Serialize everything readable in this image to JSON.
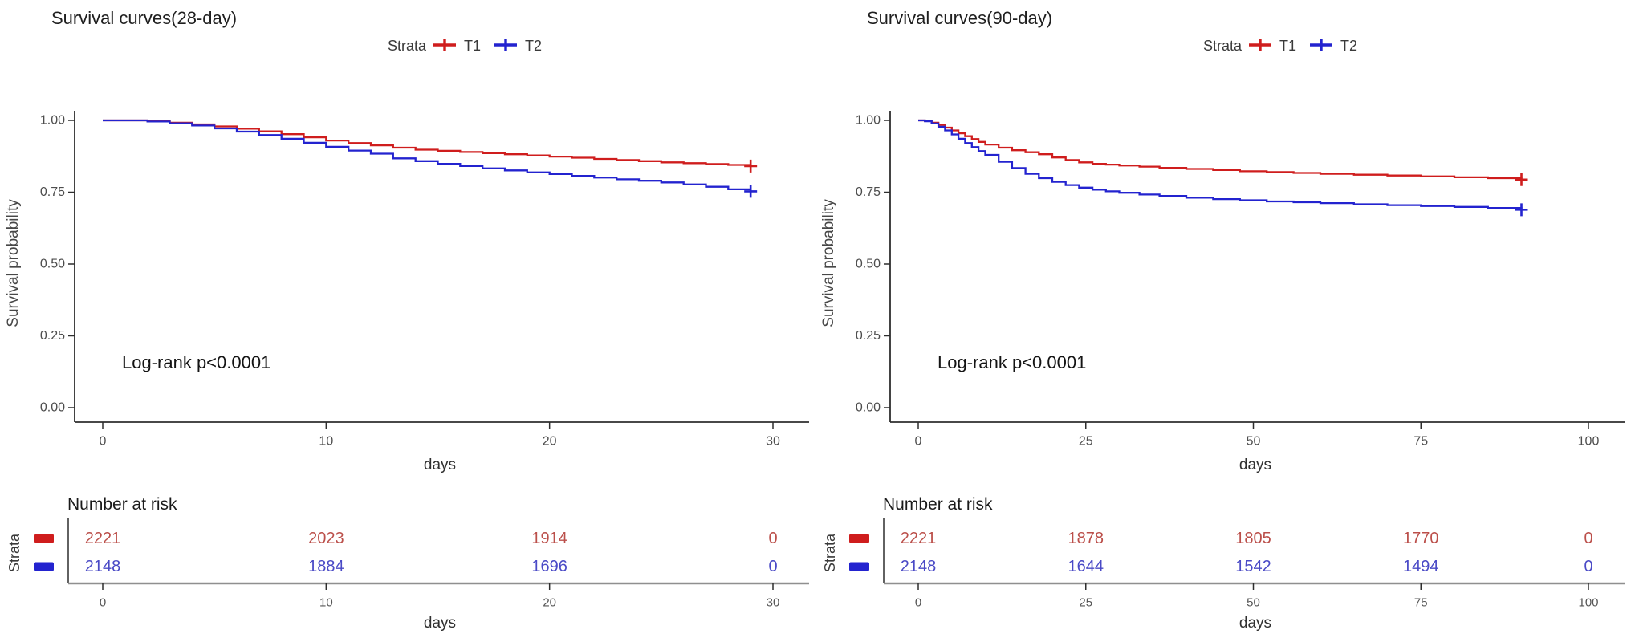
{
  "colors": {
    "t1": "#cf1d1d",
    "t2": "#2323cf",
    "t1_text": "#bb4f4a",
    "t2_text": "#4a4ac6",
    "axis": "#2e2e2e",
    "tick_label": "#4d4d4d",
    "risk_axis_line": "#8f8f8f"
  },
  "chart_data": [
    {
      "type": "line",
      "title": "Survival curves(28-day)",
      "legend_title": "Strata",
      "legend_position": "top",
      "xlabel": "days",
      "ylabel": "Survival probability",
      "annotation": "Log-rank p<0.0001",
      "grid": false,
      "xlim": [
        0,
        30
      ],
      "ylim": [
        0,
        1
      ],
      "xticks": [
        0,
        10,
        20,
        30
      ],
      "yticks": [
        1.0,
        0.75,
        0.5,
        0.25,
        0.0
      ],
      "ytick_labels": [
        "1.00",
        "0.75",
        "0.50",
        "0.25",
        "0.00"
      ],
      "series": [
        {
          "name": "T1",
          "color_key": "t1",
          "end_marker": "plus",
          "points": [
            [
              0,
              1
            ],
            [
              1,
              1
            ],
            [
              2,
              0.997
            ],
            [
              3,
              0.992
            ],
            [
              4,
              0.986
            ],
            [
              5,
              0.979
            ],
            [
              6,
              0.971
            ],
            [
              7,
              0.962
            ],
            [
              8,
              0.952
            ],
            [
              9,
              0.941
            ],
            [
              10,
              0.93
            ],
            [
              11,
              0.921
            ],
            [
              12,
              0.913
            ],
            [
              13,
              0.905
            ],
            [
              14,
              0.898
            ],
            [
              15,
              0.894
            ],
            [
              16,
              0.89
            ],
            [
              17,
              0.886
            ],
            [
              18,
              0.882
            ],
            [
              19,
              0.878
            ],
            [
              20,
              0.874
            ],
            [
              21,
              0.87
            ],
            [
              22,
              0.866
            ],
            [
              23,
              0.862
            ],
            [
              24,
              0.858
            ],
            [
              25,
              0.854
            ],
            [
              26,
              0.851
            ],
            [
              27,
              0.848
            ],
            [
              28,
              0.845
            ],
            [
              29,
              0.841
            ]
          ]
        },
        {
          "name": "T2",
          "color_key": "t2",
          "end_marker": "plus",
          "points": [
            [
              0,
              1
            ],
            [
              1,
              1
            ],
            [
              2,
              0.996
            ],
            [
              3,
              0.99
            ],
            [
              4,
              0.982
            ],
            [
              5,
              0.972
            ],
            [
              6,
              0.961
            ],
            [
              7,
              0.949
            ],
            [
              8,
              0.936
            ],
            [
              9,
              0.922
            ],
            [
              10,
              0.908
            ],
            [
              11,
              0.895
            ],
            [
              12,
              0.884
            ],
            [
              13,
              0.868
            ],
            [
              14,
              0.858
            ],
            [
              15,
              0.849
            ],
            [
              16,
              0.841
            ],
            [
              17,
              0.833
            ],
            [
              18,
              0.826
            ],
            [
              19,
              0.819
            ],
            [
              20,
              0.813
            ],
            [
              21,
              0.807
            ],
            [
              22,
              0.801
            ],
            [
              23,
              0.795
            ],
            [
              24,
              0.79
            ],
            [
              25,
              0.784
            ],
            [
              26,
              0.777
            ],
            [
              27,
              0.769
            ],
            [
              28,
              0.76
            ],
            [
              29,
              0.753
            ]
          ]
        }
      ],
      "risk_table": {
        "heading": "Number at risk",
        "axis_label": "Strata",
        "xlabel": "days",
        "time_points": [
          0,
          10,
          20,
          30
        ],
        "rows": [
          {
            "name": "T1",
            "color_key": "t1",
            "counts": [
              2221,
              2023,
              1914,
              0
            ]
          },
          {
            "name": "T2",
            "color_key": "t2",
            "counts": [
              2148,
              1884,
              1696,
              0
            ]
          }
        ]
      }
    },
    {
      "type": "line",
      "title": "Survival curves(90-day)",
      "legend_title": "Strata",
      "legend_position": "top",
      "xlabel": "days",
      "ylabel": "Survival probability",
      "annotation": "Log-rank p<0.0001",
      "grid": false,
      "xlim": [
        0,
        100
      ],
      "ylim": [
        0,
        1
      ],
      "xticks": [
        0,
        25,
        50,
        75,
        100
      ],
      "yticks": [
        1.0,
        0.75,
        0.5,
        0.25,
        0.0
      ],
      "ytick_labels": [
        "1.00",
        "0.75",
        "0.50",
        "0.25",
        "0.00"
      ],
      "series": [
        {
          "name": "T1",
          "color_key": "t1",
          "end_marker": "plus",
          "points": [
            [
              0,
              1
            ],
            [
              1,
              0.998
            ],
            [
              2,
              0.992
            ],
            [
              3,
              0.984
            ],
            [
              4,
              0.975
            ],
            [
              5,
              0.965
            ],
            [
              6,
              0.955
            ],
            [
              7,
              0.945
            ],
            [
              8,
              0.935
            ],
            [
              9,
              0.925
            ],
            [
              10,
              0.916
            ],
            [
              12,
              0.905
            ],
            [
              14,
              0.896
            ],
            [
              16,
              0.889
            ],
            [
              18,
              0.882
            ],
            [
              20,
              0.871
            ],
            [
              22,
              0.862
            ],
            [
              24,
              0.854
            ],
            [
              26,
              0.849
            ],
            [
              28,
              0.846
            ],
            [
              30,
              0.843
            ],
            [
              33,
              0.839
            ],
            [
              36,
              0.835
            ],
            [
              40,
              0.831
            ],
            [
              44,
              0.827
            ],
            [
              48,
              0.823
            ],
            [
              52,
              0.82
            ],
            [
              56,
              0.817
            ],
            [
              60,
              0.814
            ],
            [
              65,
              0.811
            ],
            [
              70,
              0.808
            ],
            [
              75,
              0.805
            ],
            [
              80,
              0.802
            ],
            [
              85,
              0.799
            ],
            [
              90,
              0.794
            ]
          ]
        },
        {
          "name": "T2",
          "color_key": "t2",
          "end_marker": "plus",
          "points": [
            [
              0,
              1
            ],
            [
              1,
              0.997
            ],
            [
              2,
              0.989
            ],
            [
              3,
              0.978
            ],
            [
              4,
              0.965
            ],
            [
              5,
              0.951
            ],
            [
              6,
              0.936
            ],
            [
              7,
              0.921
            ],
            [
              8,
              0.907
            ],
            [
              9,
              0.893
            ],
            [
              10,
              0.88
            ],
            [
              12,
              0.856
            ],
            [
              14,
              0.834
            ],
            [
              16,
              0.814
            ],
            [
              18,
              0.799
            ],
            [
              20,
              0.786
            ],
            [
              22,
              0.775
            ],
            [
              24,
              0.766
            ],
            [
              26,
              0.759
            ],
            [
              28,
              0.753
            ],
            [
              30,
              0.748
            ],
            [
              33,
              0.742
            ],
            [
              36,
              0.737
            ],
            [
              40,
              0.731
            ],
            [
              44,
              0.726
            ],
            [
              48,
              0.722
            ],
            [
              52,
              0.718
            ],
            [
              56,
              0.715
            ],
            [
              60,
              0.712
            ],
            [
              65,
              0.708
            ],
            [
              70,
              0.705
            ],
            [
              75,
              0.702
            ],
            [
              80,
              0.699
            ],
            [
              85,
              0.695
            ],
            [
              90,
              0.689
            ]
          ]
        }
      ],
      "risk_table": {
        "heading": "Number at risk",
        "axis_label": "Strata",
        "xlabel": "days",
        "time_points": [
          0,
          25,
          50,
          75,
          100
        ],
        "rows": [
          {
            "name": "T1",
            "color_key": "t1",
            "counts": [
              2221,
              1878,
              1805,
              1770,
              0
            ]
          },
          {
            "name": "T2",
            "color_key": "t2",
            "counts": [
              2148,
              1644,
              1542,
              1494,
              0
            ]
          }
        ]
      }
    }
  ]
}
